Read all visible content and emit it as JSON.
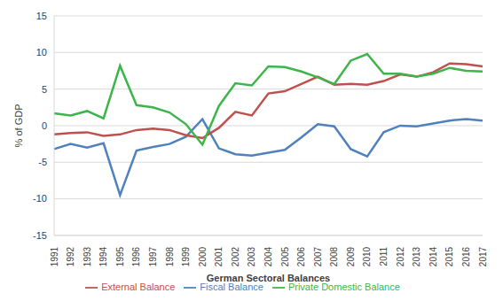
{
  "chart_data": {
    "type": "line",
    "x_label": "German Sectoral Balances",
    "y_label": "% of GDP",
    "categories": [
      "1991",
      "1992",
      "1993",
      "1994",
      "1995",
      "1996",
      "1997",
      "1998",
      "1999",
      "2000",
      "2001",
      "2002",
      "2003",
      "2004",
      "2005",
      "2006",
      "2007",
      "2008",
      "2009",
      "2010",
      "2011",
      "2012",
      "2013",
      "2014",
      "2015",
      "2016",
      "2017"
    ],
    "series": [
      {
        "name": "Fiscal Balance",
        "color": "#4f81bd",
        "values": [
          -3.2,
          -2.5,
          -3.0,
          -2.4,
          -9.5,
          -3.4,
          -2.9,
          -2.5,
          -1.5,
          0.9,
          -3.1,
          -3.9,
          -4.1,
          -3.7,
          -3.3,
          -1.6,
          0.2,
          -0.1,
          -3.2,
          -4.2,
          -0.9,
          0.0,
          -0.1,
          0.3,
          0.7,
          0.9,
          0.7
        ]
      },
      {
        "name": "External Balance",
        "color": "#c0504d",
        "values": [
          -1.2,
          -1.0,
          -0.9,
          -1.4,
          -1.2,
          -0.6,
          -0.4,
          -0.6,
          -1.3,
          -1.7,
          -0.3,
          1.9,
          1.4,
          4.4,
          4.7,
          5.7,
          6.7,
          5.6,
          5.7,
          5.6,
          6.1,
          7.0,
          6.7,
          7.3,
          8.5,
          8.4,
          8.1
        ]
      },
      {
        "name": "Private Domestic Balance",
        "color": "#3db54a",
        "values": [
          1.7,
          1.4,
          2.0,
          1.0,
          8.2,
          2.8,
          2.5,
          1.8,
          0.2,
          -2.6,
          2.7,
          5.8,
          5.5,
          8.1,
          8.0,
          7.4,
          6.6,
          5.7,
          8.9,
          9.8,
          7.1,
          7.1,
          6.7,
          7.1,
          7.9,
          7.5,
          7.4
        ]
      }
    ],
    "ylim": [
      -15,
      15
    ],
    "yticks": [
      -15,
      -10,
      -5,
      0,
      5,
      10,
      15
    ],
    "grid": true,
    "legend": "bottom"
  }
}
